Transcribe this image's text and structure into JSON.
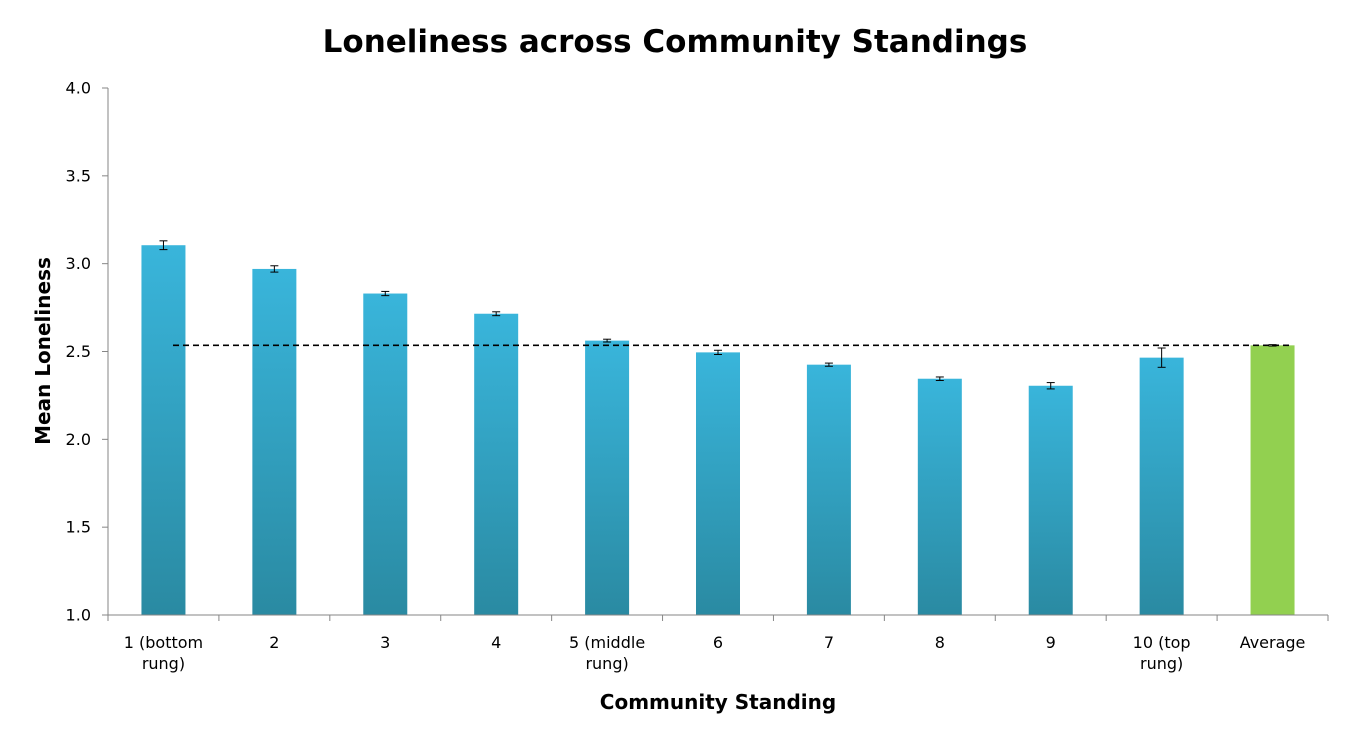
{
  "chart_data": {
    "type": "bar",
    "title": "Loneliness across Community Standings",
    "xlabel": "Community Standing",
    "ylabel": "Mean Loneliness",
    "ylim": [
      1.0,
      4.0
    ],
    "yticks": [
      "1.0",
      "1.5",
      "2.0",
      "2.5",
      "3.0",
      "3.5",
      "4.0"
    ],
    "categories": [
      [
        "1 (bottom",
        "rung)"
      ],
      [
        "2"
      ],
      [
        "3"
      ],
      [
        "4"
      ],
      [
        "5 (middle",
        "rung)"
      ],
      [
        "6"
      ],
      [
        "7"
      ],
      [
        "8"
      ],
      [
        "9"
      ],
      [
        "10 (top",
        "rung)"
      ],
      [
        "Average"
      ]
    ],
    "values": [
      3.105,
      2.97,
      2.83,
      2.715,
      2.562,
      2.495,
      2.425,
      2.345,
      2.305,
      2.465,
      2.535
    ],
    "errors": [
      0.025,
      0.018,
      0.012,
      0.011,
      0.008,
      0.012,
      0.009,
      0.01,
      0.018,
      0.055,
      0.004
    ],
    "reference_line": 2.535,
    "colors": {
      "bar_top": "#39b5db",
      "bar_bottom": "#2a8aa2",
      "average_bar": "#92d050",
      "axis": "#868686",
      "reference": "#000000"
    },
    "grid": false,
    "legend": "none"
  }
}
